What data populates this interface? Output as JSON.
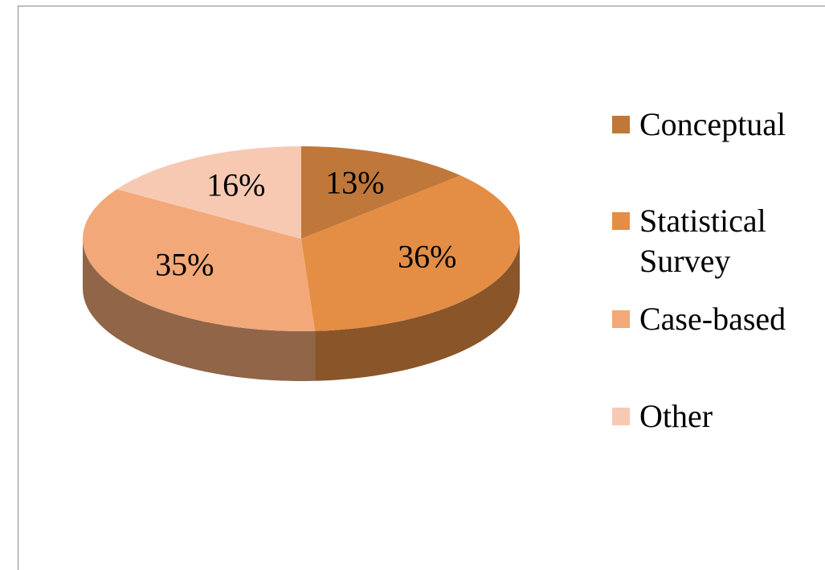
{
  "chart_data": {
    "type": "pie",
    "categories": [
      "Conceptual",
      "Statistical Survey",
      "Case-based",
      "Other"
    ],
    "values": [
      13,
      36,
      35,
      16
    ],
    "value_labels": [
      "13%",
      "36%",
      "35%",
      "16%"
    ],
    "colors": [
      "#c0773a",
      "#e48d45",
      "#f2a878",
      "#f7c9b3"
    ],
    "legend": "right"
  }
}
